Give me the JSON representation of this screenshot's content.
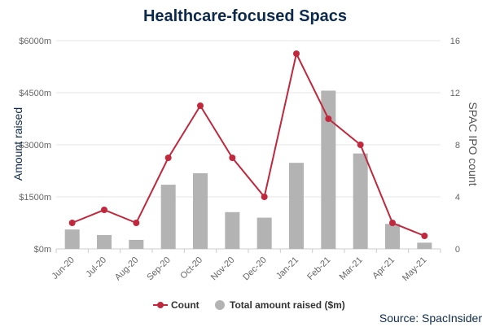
{
  "chart_data": {
    "type": "bar+line",
    "title": "Healthcare-focused Spacs",
    "categories": [
      "Jun-20",
      "Jul-20",
      "Aug-20",
      "Sep-20",
      "Oct-20",
      "Nov-20",
      "Dec-20",
      "Jan-21",
      "Feb-21",
      "Mar-21",
      "Apr-21",
      "May-21"
    ],
    "series": [
      {
        "name": "Total amount raised ($m)",
        "type": "bar",
        "axis": "left",
        "color": "#b3b3b3",
        "values": [
          560,
          400,
          260,
          1850,
          2180,
          1060,
          900,
          2480,
          4560,
          2750,
          720,
          180
        ]
      },
      {
        "name": "Count",
        "type": "line",
        "axis": "right",
        "color": "#c0283d",
        "values": [
          2,
          3,
          2,
          7,
          11,
          7,
          4,
          15,
          10,
          8,
          2,
          1
        ]
      }
    ],
    "y_left": {
      "label": "Amount raised",
      "range": [
        0,
        6000
      ],
      "ticks": [
        0,
        1500,
        3000,
        4500,
        6000
      ],
      "tick_labels": [
        "$0m",
        "$1500m",
        "$3000m",
        "$4500m",
        "$6000m"
      ]
    },
    "y_right": {
      "label": "SPAC IPO count",
      "range": [
        0,
        16
      ],
      "ticks": [
        0,
        4,
        8,
        12,
        16
      ],
      "tick_labels": [
        "0",
        "4",
        "8",
        "12",
        "16"
      ]
    },
    "grid": true,
    "legend": {
      "placement": "bottom-center",
      "items": [
        "Count",
        "Total amount raised ($m)"
      ]
    },
    "source": "Source: SpacInsider"
  }
}
